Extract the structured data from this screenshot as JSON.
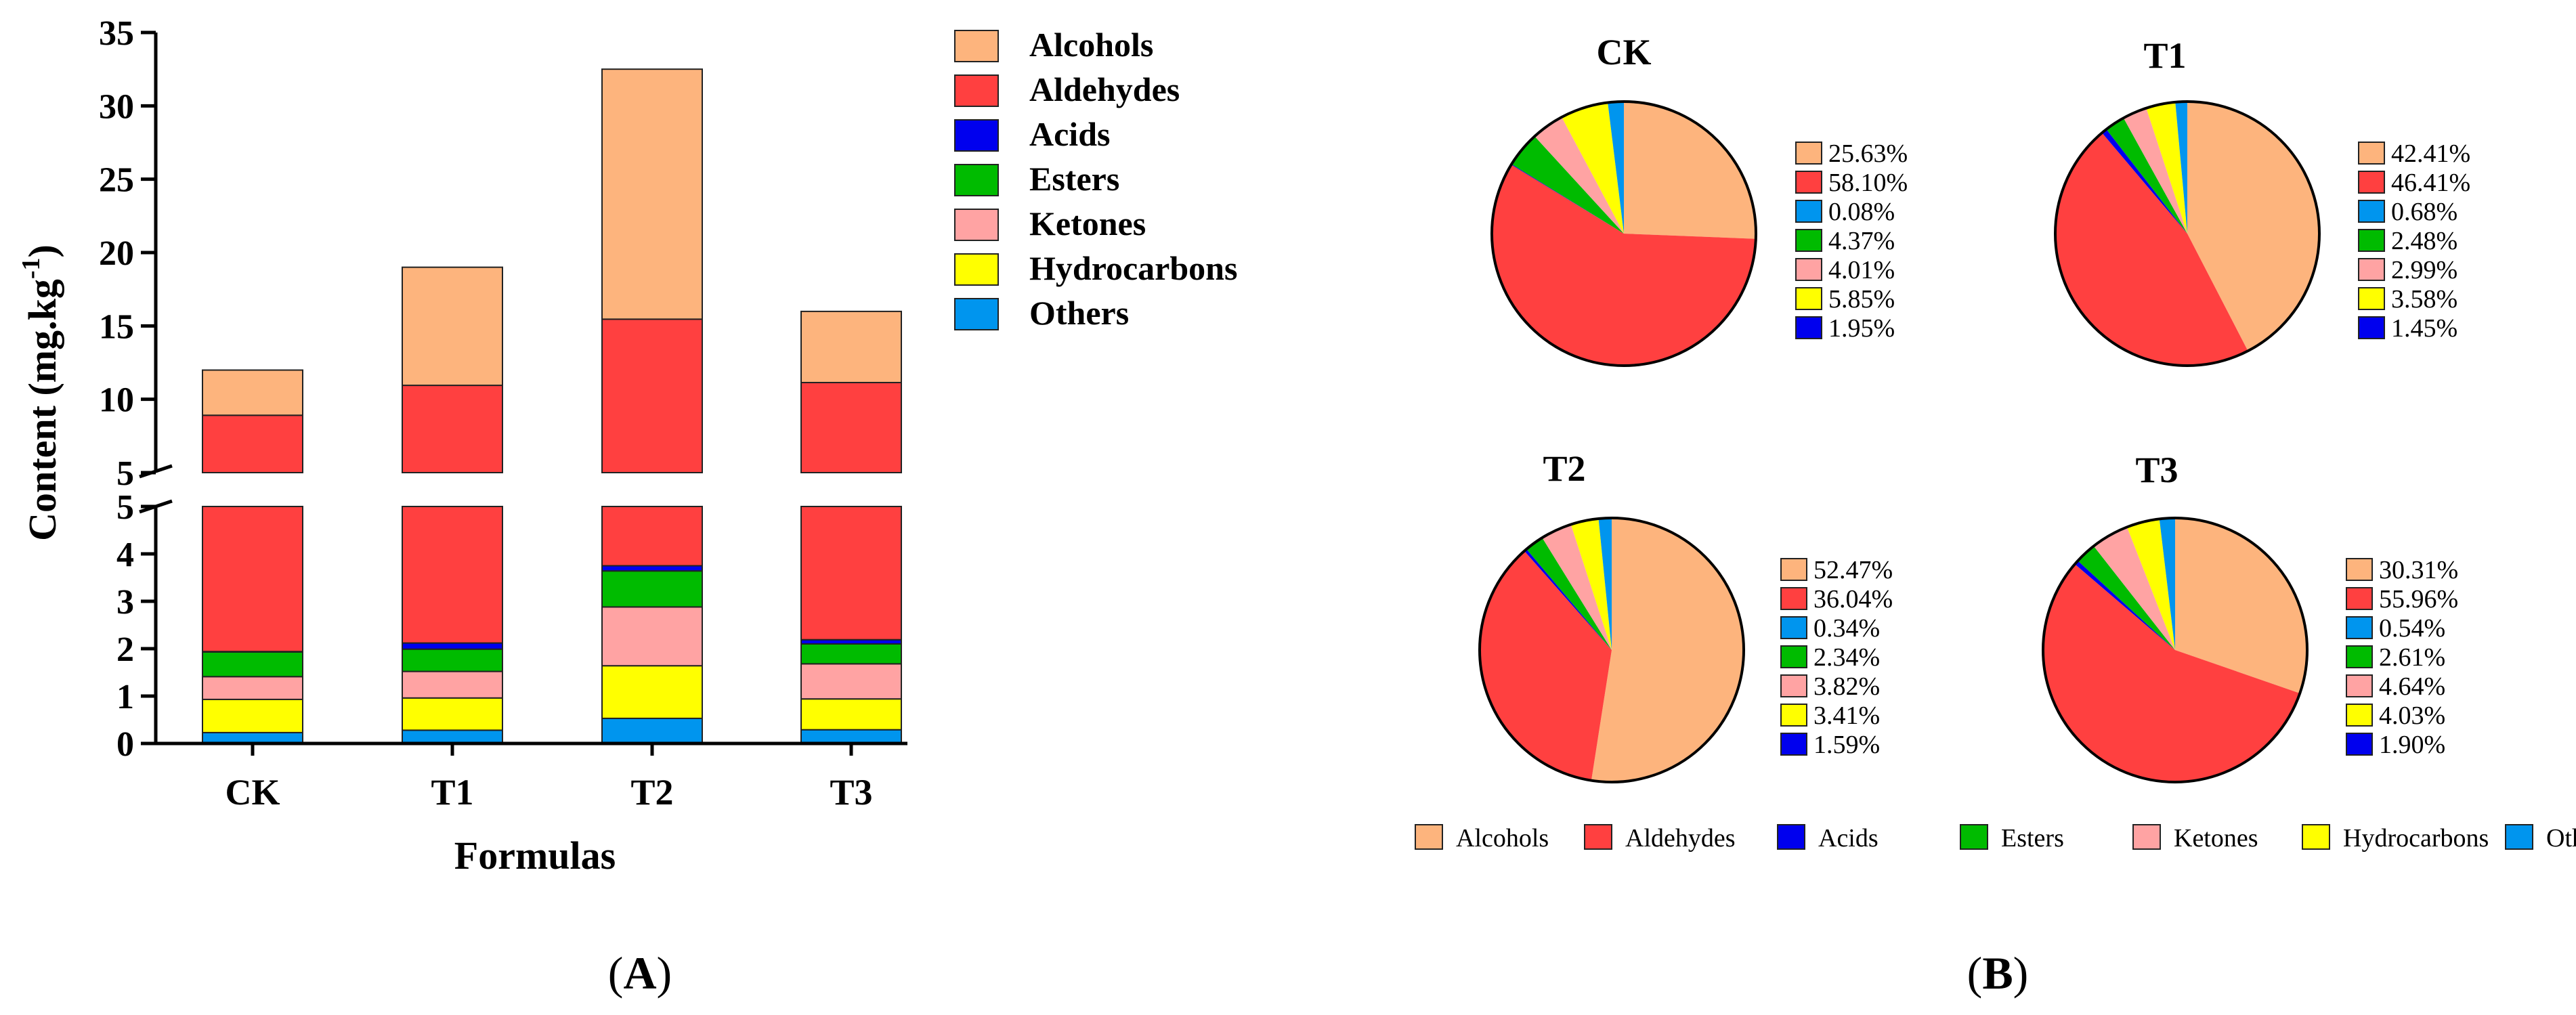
{
  "colors": {
    "Alcohols": "#FDB47D",
    "Aldehydes": "#FF4040",
    "Acids": "#0000EE",
    "Esters": "#00BB00",
    "Ketones": "#FFA3A3",
    "Hydrocarbons": "#FFFF00",
    "Others": "#0095EE"
  },
  "chart_data": [
    {
      "type": "bar",
      "stacked": true,
      "panel_label": "(A)",
      "xlabel": "Formulas",
      "ylabel": "Content (mg.kg",
      "ylabel_superscript": "-1",
      "ylabel_suffix": ")",
      "categories": [
        "CK",
        "T1",
        "T2",
        "T3"
      ],
      "axis_break": {
        "lower": [
          0,
          5
        ],
        "upper": [
          5,
          35
        ]
      },
      "yticks_lower": [
        0,
        1,
        2,
        3,
        4,
        5
      ],
      "yticks_upper": [
        5,
        10,
        15,
        20,
        25,
        30,
        35
      ],
      "legend": {
        "placement": "right",
        "entries": [
          "Alcohols",
          "Aldehydes",
          "Acids",
          "Esters",
          "Ketones",
          "Hydrocarbons",
          "Others"
        ]
      },
      "series": [
        {
          "name": "Others",
          "values": [
            0.23,
            0.28,
            0.53,
            0.29
          ]
        },
        {
          "name": "Hydrocarbons",
          "values": [
            0.7,
            0.68,
            1.11,
            0.65
          ]
        },
        {
          "name": "Ketones",
          "values": [
            0.48,
            0.56,
            1.24,
            0.74
          ]
        },
        {
          "name": "Esters",
          "values": [
            0.52,
            0.47,
            0.76,
            0.42
          ]
        },
        {
          "name": "Acids",
          "values": [
            0.01,
            0.13,
            0.11,
            0.09
          ]
        },
        {
          "name": "Aldehydes",
          "values": [
            6.97,
            8.83,
            11.71,
            8.95
          ]
        },
        {
          "name": "Alcohols",
          "values": [
            3.08,
            8.05,
            17.04,
            4.85
          ]
        }
      ]
    },
    {
      "type": "pie",
      "panel_label": "(B)",
      "categories": [
        "Alcohols",
        "Aldehydes",
        "Acids",
        "Esters",
        "Ketones",
        "Hydrocarbons",
        "Others"
      ],
      "legend": {
        "placement": "bottom",
        "entries": [
          "Alcohols",
          "Aldehydes",
          "Acids",
          "Esters",
          "Ketones",
          "Hydrocarbons",
          "Others"
        ]
      },
      "pies": [
        {
          "title": "CK",
          "values": [
            25.63,
            58.1,
            0.08,
            4.37,
            4.01,
            5.85,
            1.95
          ],
          "labels": [
            "25.63%",
            "58.10%",
            "0.08%",
            "4.37%",
            "4.01%",
            "5.85%",
            "1.95%"
          ],
          "label_colors": [
            "Alcohols",
            "Aldehydes",
            "Others",
            "Esters",
            "Ketones",
            "Hydrocarbons",
            "Acids"
          ]
        },
        {
          "title": "T1",
          "values": [
            42.41,
            46.41,
            0.68,
            2.48,
            2.99,
            3.58,
            1.45
          ],
          "labels": [
            "42.41%",
            "46.41%",
            "0.68%",
            "2.48%",
            "2.99%",
            "3.58%",
            "1.45%"
          ],
          "label_colors": [
            "Alcohols",
            "Aldehydes",
            "Others",
            "Esters",
            "Ketones",
            "Hydrocarbons",
            "Acids"
          ]
        },
        {
          "title": "T2",
          "values": [
            52.47,
            36.04,
            0.34,
            2.34,
            3.82,
            3.41,
            1.59
          ],
          "labels": [
            "52.47%",
            "36.04%",
            "0.34%",
            "2.34%",
            "3.82%",
            "3.41%",
            "1.59%"
          ],
          "label_colors": [
            "Alcohols",
            "Aldehydes",
            "Others",
            "Esters",
            "Ketones",
            "Hydrocarbons",
            "Acids"
          ]
        },
        {
          "title": "T3",
          "values": [
            30.31,
            55.96,
            0.54,
            2.61,
            4.64,
            4.03,
            1.9
          ],
          "labels": [
            "30.31%",
            "55.96%",
            "0.54%",
            "2.61%",
            "4.64%",
            "4.03%",
            "1.90%"
          ],
          "label_colors": [
            "Alcohols",
            "Aldehydes",
            "Others",
            "Esters",
            "Ketones",
            "Hydrocarbons",
            "Acids"
          ]
        }
      ]
    }
  ]
}
